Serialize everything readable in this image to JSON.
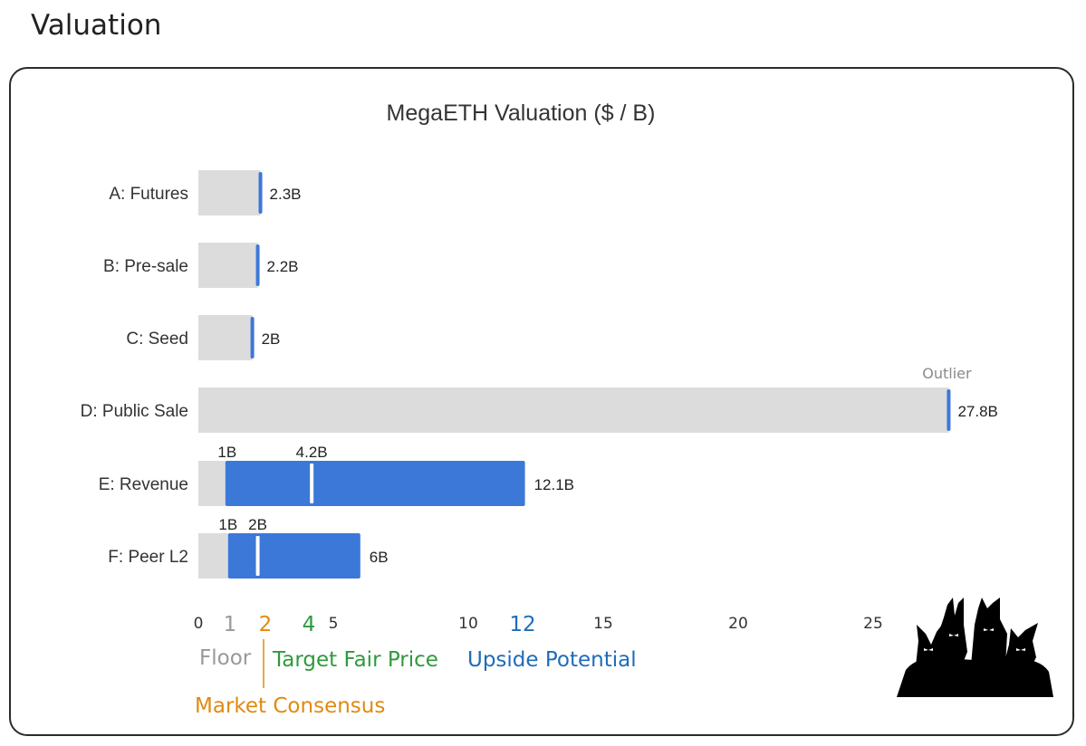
{
  "section_title": "Valuation",
  "colors": {
    "floor": "#999999",
    "market_consensus": "#E08A10",
    "target_fair_price": "#2E9A3C",
    "upside_potential": "#1F6CB8",
    "bar_gray": "#dcdcdc",
    "bar_blue": "#3C78D8",
    "marker_blue": "#3C78D8"
  },
  "chart_data": {
    "type": "bar",
    "orientation": "horizontal",
    "title": "MegaETH Valuation ($ / B)",
    "xlim": [
      0,
      30
    ],
    "xticks": [
      0,
      5,
      10,
      15,
      20,
      25
    ],
    "categories": [
      "A: Futures",
      "B: Pre-sale",
      "C: Seed",
      "D: Public Sale",
      "E: Revenue",
      "F: Peer L2"
    ],
    "bars": [
      {
        "category": "A: Futures",
        "value": 2.3,
        "label": "2.3B"
      },
      {
        "category": "B: Pre-sale",
        "value": 2.2,
        "label": "2.2B"
      },
      {
        "category": "C: Seed",
        "value": 2.0,
        "label": "2B"
      },
      {
        "category": "D: Public Sale",
        "value": 27.8,
        "label": "27.8B",
        "annotation": "Outlier"
      },
      {
        "category": "E: Revenue",
        "value": 12.1,
        "label": "12.1B",
        "range_start": 1,
        "range_start_label": "1B",
        "marker": 4.2,
        "marker_label": "4.2B"
      },
      {
        "category": "F: Peer L2",
        "value": 6,
        "label": "6B",
        "range_start": 1.1,
        "range_start_label": "1B",
        "marker": 2.2,
        "marker_label": "2B"
      }
    ],
    "legend_markers": [
      {
        "value": 1,
        "label": "1",
        "name": "Floor",
        "color_key": "floor"
      },
      {
        "value": 2.2,
        "label": "2",
        "name": "Market Consensus",
        "color_key": "market_consensus"
      },
      {
        "value": 4.2,
        "label": "4",
        "name": "Target Fair Price",
        "color_key": "target_fair_price"
      },
      {
        "value": 12,
        "label": "12",
        "name": "Upside Potential",
        "color_key": "upside_potential"
      }
    ]
  },
  "logo": {
    "name": "bunny-silhouettes-logo"
  }
}
